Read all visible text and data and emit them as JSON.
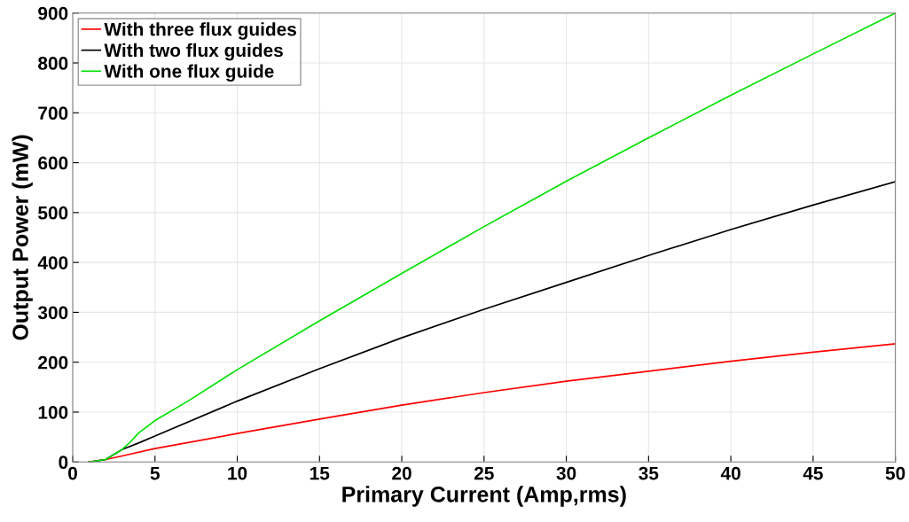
{
  "chart_data": {
    "type": "line",
    "xlabel": "Primary Current (Amp,rms)",
    "ylabel": "Output Power (mW)",
    "xlim": [
      0,
      50
    ],
    "ylim": [
      0,
      900
    ],
    "xticks": [
      0,
      5,
      10,
      15,
      20,
      25,
      30,
      35,
      40,
      45,
      50
    ],
    "yticks": [
      0,
      100,
      200,
      300,
      400,
      500,
      600,
      700,
      800,
      900
    ],
    "grid": true,
    "legend": "top left",
    "series": [
      {
        "name": "With three flux guides",
        "color": "#ff0000",
        "x": [
          1,
          2,
          3,
          5,
          10,
          15,
          20,
          25,
          30,
          35,
          40,
          45,
          50
        ],
        "values": [
          0,
          5,
          12,
          27,
          57,
          86,
          114,
          139,
          162,
          182,
          202,
          220,
          237
        ]
      },
      {
        "name": "With two flux guides",
        "color": "#000000",
        "x": [
          1,
          2,
          3,
          4,
          5,
          10,
          15,
          20,
          25,
          30,
          35,
          40,
          45,
          50
        ],
        "values": [
          0,
          5,
          25,
          38,
          52,
          122,
          187,
          249,
          306,
          360,
          414,
          466,
          515,
          562
        ]
      },
      {
        "name": "With one flux guide",
        "color": "#00e000",
        "x": [
          1,
          2,
          3,
          3.5,
          4,
          5,
          7,
          10,
          15,
          20,
          25,
          30,
          35,
          40,
          45,
          50
        ],
        "values": [
          0,
          5,
          25,
          40,
          58,
          83,
          122,
          185,
          283,
          378,
          472,
          563,
          650,
          735,
          818,
          900
        ]
      }
    ]
  }
}
